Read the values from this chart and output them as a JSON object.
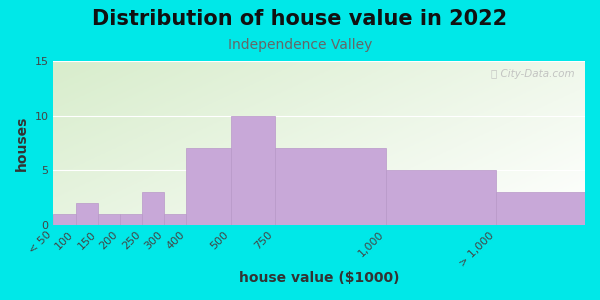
{
  "title": "Distribution of house value in 2022",
  "subtitle": "Independence Valley",
  "xlabel": "house value ($1000)",
  "ylabel": "houses",
  "bar_labels": [
    "< 50",
    "100",
    "150",
    "200",
    "250",
    "300",
    "400",
    "500",
    "750",
    "1,000",
    "> 1,000"
  ],
  "bar_values": [
    1,
    2,
    1,
    1,
    3,
    1,
    7,
    10,
    7,
    5,
    3
  ],
  "bin_edges": [
    0,
    50,
    100,
    150,
    200,
    250,
    300,
    400,
    500,
    750,
    1000,
    1200
  ],
  "bar_color": "#c8a8d8",
  "bar_edge_color": "#b898c8",
  "ylim": [
    0,
    15
  ],
  "yticks": [
    0,
    5,
    10,
    15
  ],
  "bg_color": "#00e8e8",
  "title_fontsize": 15,
  "subtitle_fontsize": 10,
  "label_fontsize": 10,
  "tick_fontsize": 8,
  "watermark": "ⓘ City-Data.com"
}
